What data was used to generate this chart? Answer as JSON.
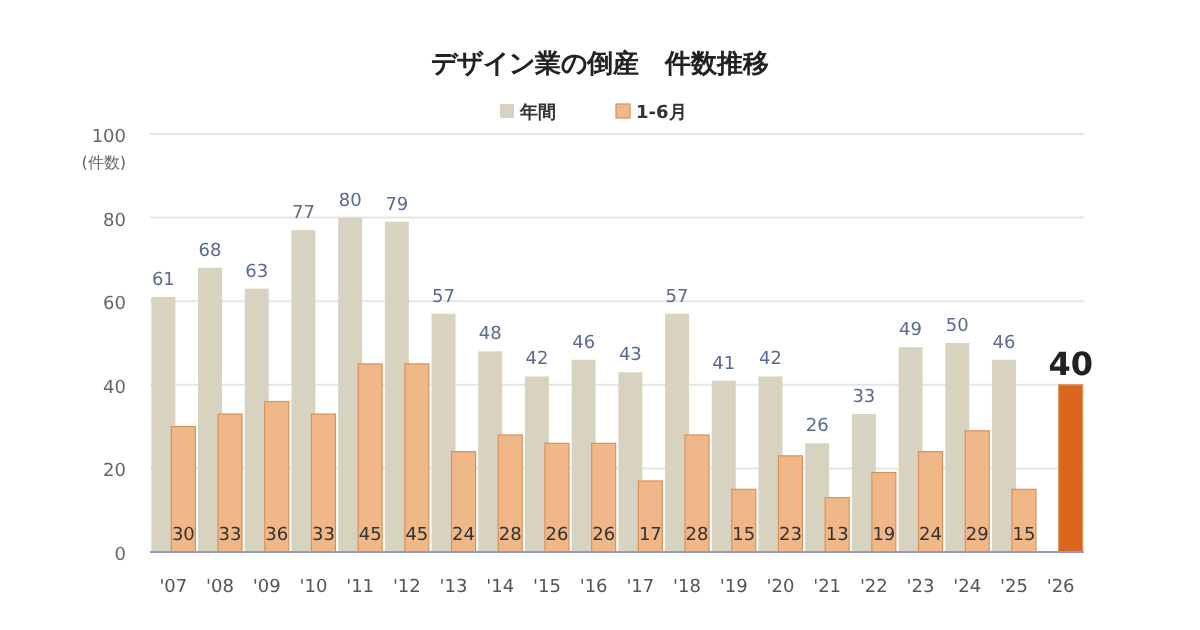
{
  "chart_data": {
    "type": "bar",
    "title": "デザイン業の倒産　件数推移",
    "ylabel": "(件数)",
    "categories": [
      "'07",
      "'08",
      "'09",
      "'10",
      "'11",
      "'12",
      "'13",
      "'14",
      "'15",
      "'16",
      "'17",
      "'18",
      "'19",
      "'20",
      "'21",
      "'22",
      "'23",
      "'24",
      "'25",
      "'26"
    ],
    "series": [
      {
        "name": "年間",
        "color": "#d8d3c1",
        "values": [
          61,
          68,
          63,
          77,
          80,
          79,
          57,
          48,
          42,
          46,
          43,
          57,
          41,
          42,
          26,
          33,
          49,
          50,
          46,
          null
        ]
      },
      {
        "name": "1-6月",
        "color": "#f0b888",
        "colors": [
          "#f0b888",
          "#f0b888",
          "#f0b888",
          "#f0b888",
          "#f0b888",
          "#f0b888",
          "#f0b888",
          "#f0b888",
          "#f0b888",
          "#f0b888",
          "#f0b888",
          "#f0b888",
          "#f0b888",
          "#f0b888",
          "#f0b888",
          "#f0b888",
          "#f0b888",
          "#f0b888",
          "#f0b888",
          "#d9661c"
        ],
        "values": [
          30,
          33,
          36,
          33,
          45,
          45,
          24,
          28,
          26,
          26,
          17,
          28,
          15,
          23,
          13,
          19,
          24,
          29,
          15,
          40
        ]
      }
    ],
    "ylim": [
      0,
      100
    ],
    "yticks": [
      0,
      20,
      40,
      60,
      80,
      100
    ],
    "grid": "y",
    "legend": "top",
    "data_labels": true
  }
}
